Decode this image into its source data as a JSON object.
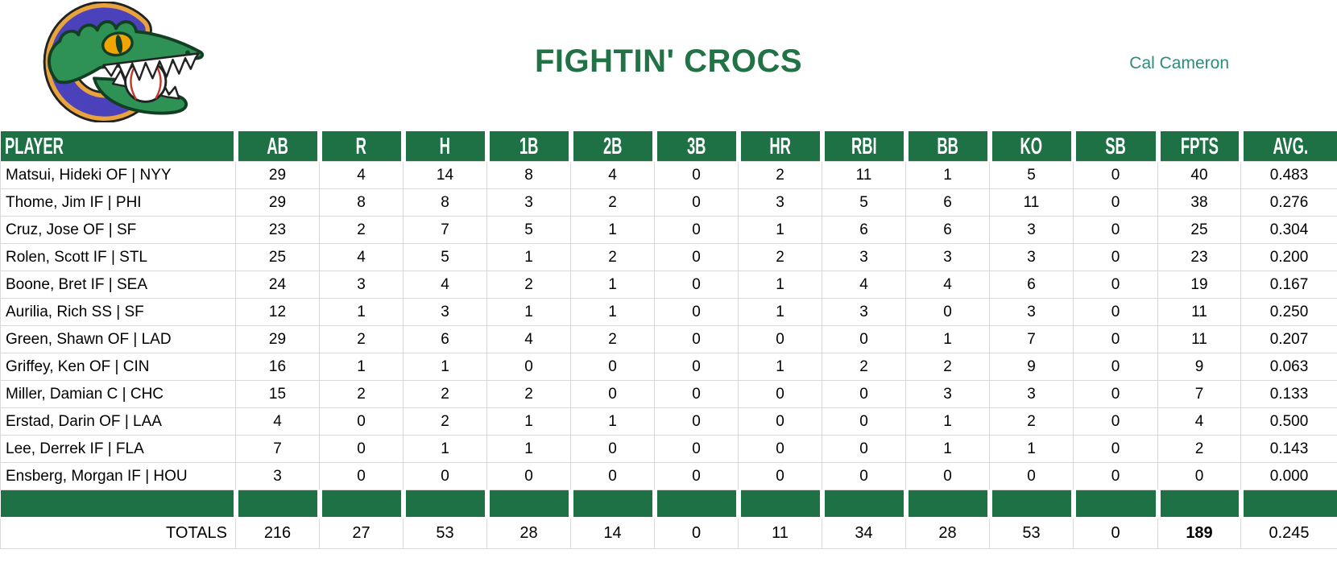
{
  "team": {
    "title": "FIGHTIN' CROCS",
    "owner": "Cal Cameron",
    "logo": "crocodile-baseball-logo"
  },
  "colors": {
    "header_green": "#1E7145",
    "title_green": "#217346",
    "owner_teal": "#2E8B7C",
    "gridline_gray": "#D9D9D9",
    "logo_purple": "#4B42BB",
    "logo_gold": "#E8A33D",
    "logo_green": "#2E9254"
  },
  "table": {
    "columns": [
      "PLAYER",
      "AB",
      "R",
      "H",
      "1B",
      "2B",
      "3B",
      "HR",
      "RBI",
      "BB",
      "KO",
      "SB",
      "FPTS",
      "AVG."
    ],
    "rows": [
      {
        "player": "Matsui, Hideki OF | NYY",
        "stats": [
          "29",
          "4",
          "14",
          "8",
          "4",
          "0",
          "2",
          "11",
          "1",
          "5",
          "0",
          "40",
          "0.483"
        ]
      },
      {
        "player": "Thome, Jim IF | PHI",
        "stats": [
          "29",
          "8",
          "8",
          "3",
          "2",
          "0",
          "3",
          "5",
          "6",
          "11",
          "0",
          "38",
          "0.276"
        ]
      },
      {
        "player": "Cruz, Jose OF | SF",
        "stats": [
          "23",
          "2",
          "7",
          "5",
          "1",
          "0",
          "1",
          "6",
          "6",
          "3",
          "0",
          "25",
          "0.304"
        ]
      },
      {
        "player": "Rolen, Scott IF | STL",
        "stats": [
          "25",
          "4",
          "5",
          "1",
          "2",
          "0",
          "2",
          "3",
          "3",
          "3",
          "0",
          "23",
          "0.200"
        ]
      },
      {
        "player": "Boone, Bret IF | SEA",
        "stats": [
          "24",
          "3",
          "4",
          "2",
          "1",
          "0",
          "1",
          "4",
          "4",
          "6",
          "0",
          "19",
          "0.167"
        ]
      },
      {
        "player": "Aurilia, Rich SS | SF",
        "stats": [
          "12",
          "1",
          "3",
          "1",
          "1",
          "0",
          "1",
          "3",
          "0",
          "3",
          "0",
          "11",
          "0.250"
        ]
      },
      {
        "player": "Green, Shawn OF | LAD",
        "stats": [
          "29",
          "2",
          "6",
          "4",
          "2",
          "0",
          "0",
          "0",
          "1",
          "7",
          "0",
          "11",
          "0.207"
        ]
      },
      {
        "player": "Griffey, Ken OF | CIN",
        "stats": [
          "16",
          "1",
          "1",
          "0",
          "0",
          "0",
          "1",
          "2",
          "2",
          "9",
          "0",
          "9",
          "0.063"
        ]
      },
      {
        "player": "Miller, Damian C | CHC",
        "stats": [
          "15",
          "2",
          "2",
          "2",
          "0",
          "0",
          "0",
          "0",
          "3",
          "3",
          "0",
          "7",
          "0.133"
        ]
      },
      {
        "player": "Erstad, Darin OF | LAA",
        "stats": [
          "4",
          "0",
          "2",
          "1",
          "1",
          "0",
          "0",
          "0",
          "1",
          "2",
          "0",
          "4",
          "0.500"
        ]
      },
      {
        "player": "Lee, Derrek IF | FLA",
        "stats": [
          "7",
          "0",
          "1",
          "1",
          "0",
          "0",
          "0",
          "0",
          "1",
          "1",
          "0",
          "2",
          "0.143"
        ]
      },
      {
        "player": "Ensberg, Morgan IF | HOU",
        "stats": [
          "3",
          "0",
          "0",
          "0",
          "0",
          "0",
          "0",
          "0",
          "0",
          "0",
          "0",
          "0",
          "0.000"
        ]
      }
    ],
    "totals": {
      "label": "TOTALS",
      "values": [
        "216",
        "27",
        "53",
        "28",
        "14",
        "0",
        "11",
        "34",
        "28",
        "53",
        "0",
        "189",
        "0.245"
      ],
      "bold_value_index": 11
    }
  }
}
